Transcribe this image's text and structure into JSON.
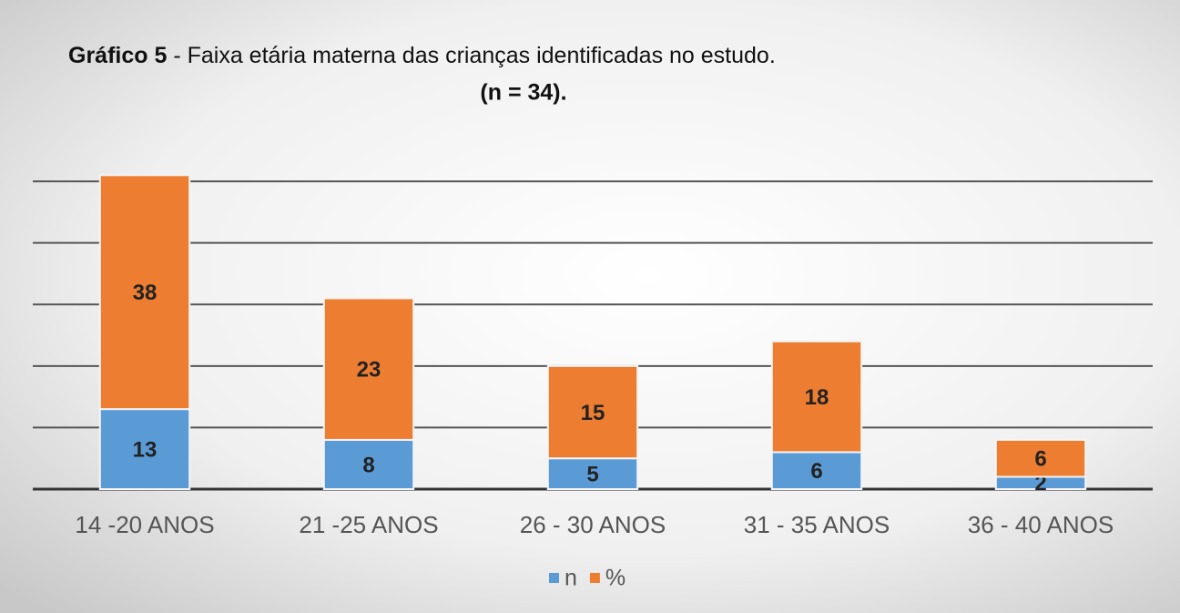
{
  "chart_data": {
    "type": "stacked_bar",
    "title": [
      "Gráfico 5",
      " - Faixa etária materna das crianças identificadas no estudo."
    ],
    "subtitle": "(n = 34).",
    "categories": [
      "14 -20 ANOS",
      "21 -25  ANOS",
      "26 - 30 ANOS",
      "31 - 35 ANOS",
      "36 - 40 ANOS"
    ],
    "series": [
      {
        "name": "n",
        "color": "#5b9bd5",
        "values": [
          13,
          8,
          5,
          6,
          2
        ]
      },
      {
        "name": "%",
        "color": "#ed7d31",
        "values": [
          38,
          23,
          15,
          18,
          6
        ]
      }
    ],
    "ylim": [
      0,
      58
    ],
    "yticks": [
      0,
      10,
      20,
      30,
      40,
      50
    ],
    "ytick_labels": false,
    "grid": true,
    "legend": "bottom"
  }
}
